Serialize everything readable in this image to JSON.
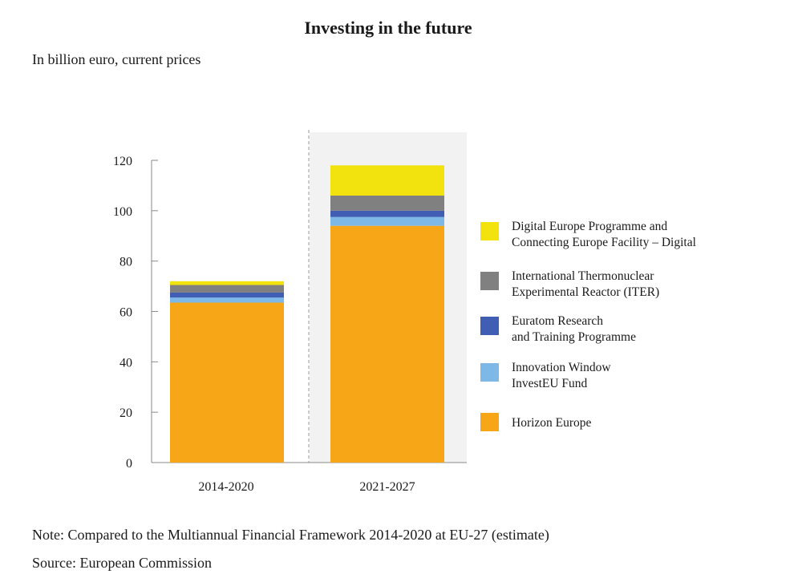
{
  "title": "Investing in the future",
  "subtitle": "In billion euro, current prices",
  "note": "Note: Compared to the Multiannual Financial Framework 2014-2020 at EU-27 (estimate)",
  "source": "Source: European Commission",
  "chart_data": {
    "type": "bar",
    "stacked": true,
    "categories": [
      "2014-2020",
      "2021-2027"
    ],
    "ylim": [
      0,
      120
    ],
    "yticks": [
      0,
      20,
      40,
      60,
      80,
      100,
      120
    ],
    "grid": false,
    "legend_position": "right",
    "highlight_category": "2021-2027",
    "series": [
      {
        "name": "Horizon Europe",
        "color": "#F7A618",
        "values": [
          63.5,
          94.0
        ]
      },
      {
        "name": "Innovation Window InvestEU Fund",
        "color": "#7DB8E6",
        "values": [
          2.0,
          3.5
        ]
      },
      {
        "name": "Euratom Research and Training Programme",
        "color": "#3F5EB4",
        "values": [
          2.0,
          2.5
        ]
      },
      {
        "name": "International Thermonuclear Experimental Reactor (ITER)",
        "color": "#808080",
        "values": [
          3.0,
          6.0
        ]
      },
      {
        "name": "Digital Europe Programme and Connecting Europe Facility – Digital",
        "color": "#F2E20E",
        "values": [
          1.5,
          12.0
        ]
      }
    ],
    "legend": [
      {
        "lines": [
          "Digital Europe Programme and",
          "Connecting Europe Facility – Digital"
        ],
        "color": "#F2E20E"
      },
      {
        "lines": [
          "International Thermonuclear",
          "Experimental Reactor (ITER)"
        ],
        "color": "#808080"
      },
      {
        "lines": [
          "Euratom Research",
          "and Training Programme"
        ],
        "color": "#3F5EB4"
      },
      {
        "lines": [
          "Innovation Window",
          "InvestEU Fund"
        ],
        "color": "#7DB8E6"
      },
      {
        "lines": [
          "Horizon Europe"
        ],
        "color": "#F7A618"
      }
    ]
  }
}
